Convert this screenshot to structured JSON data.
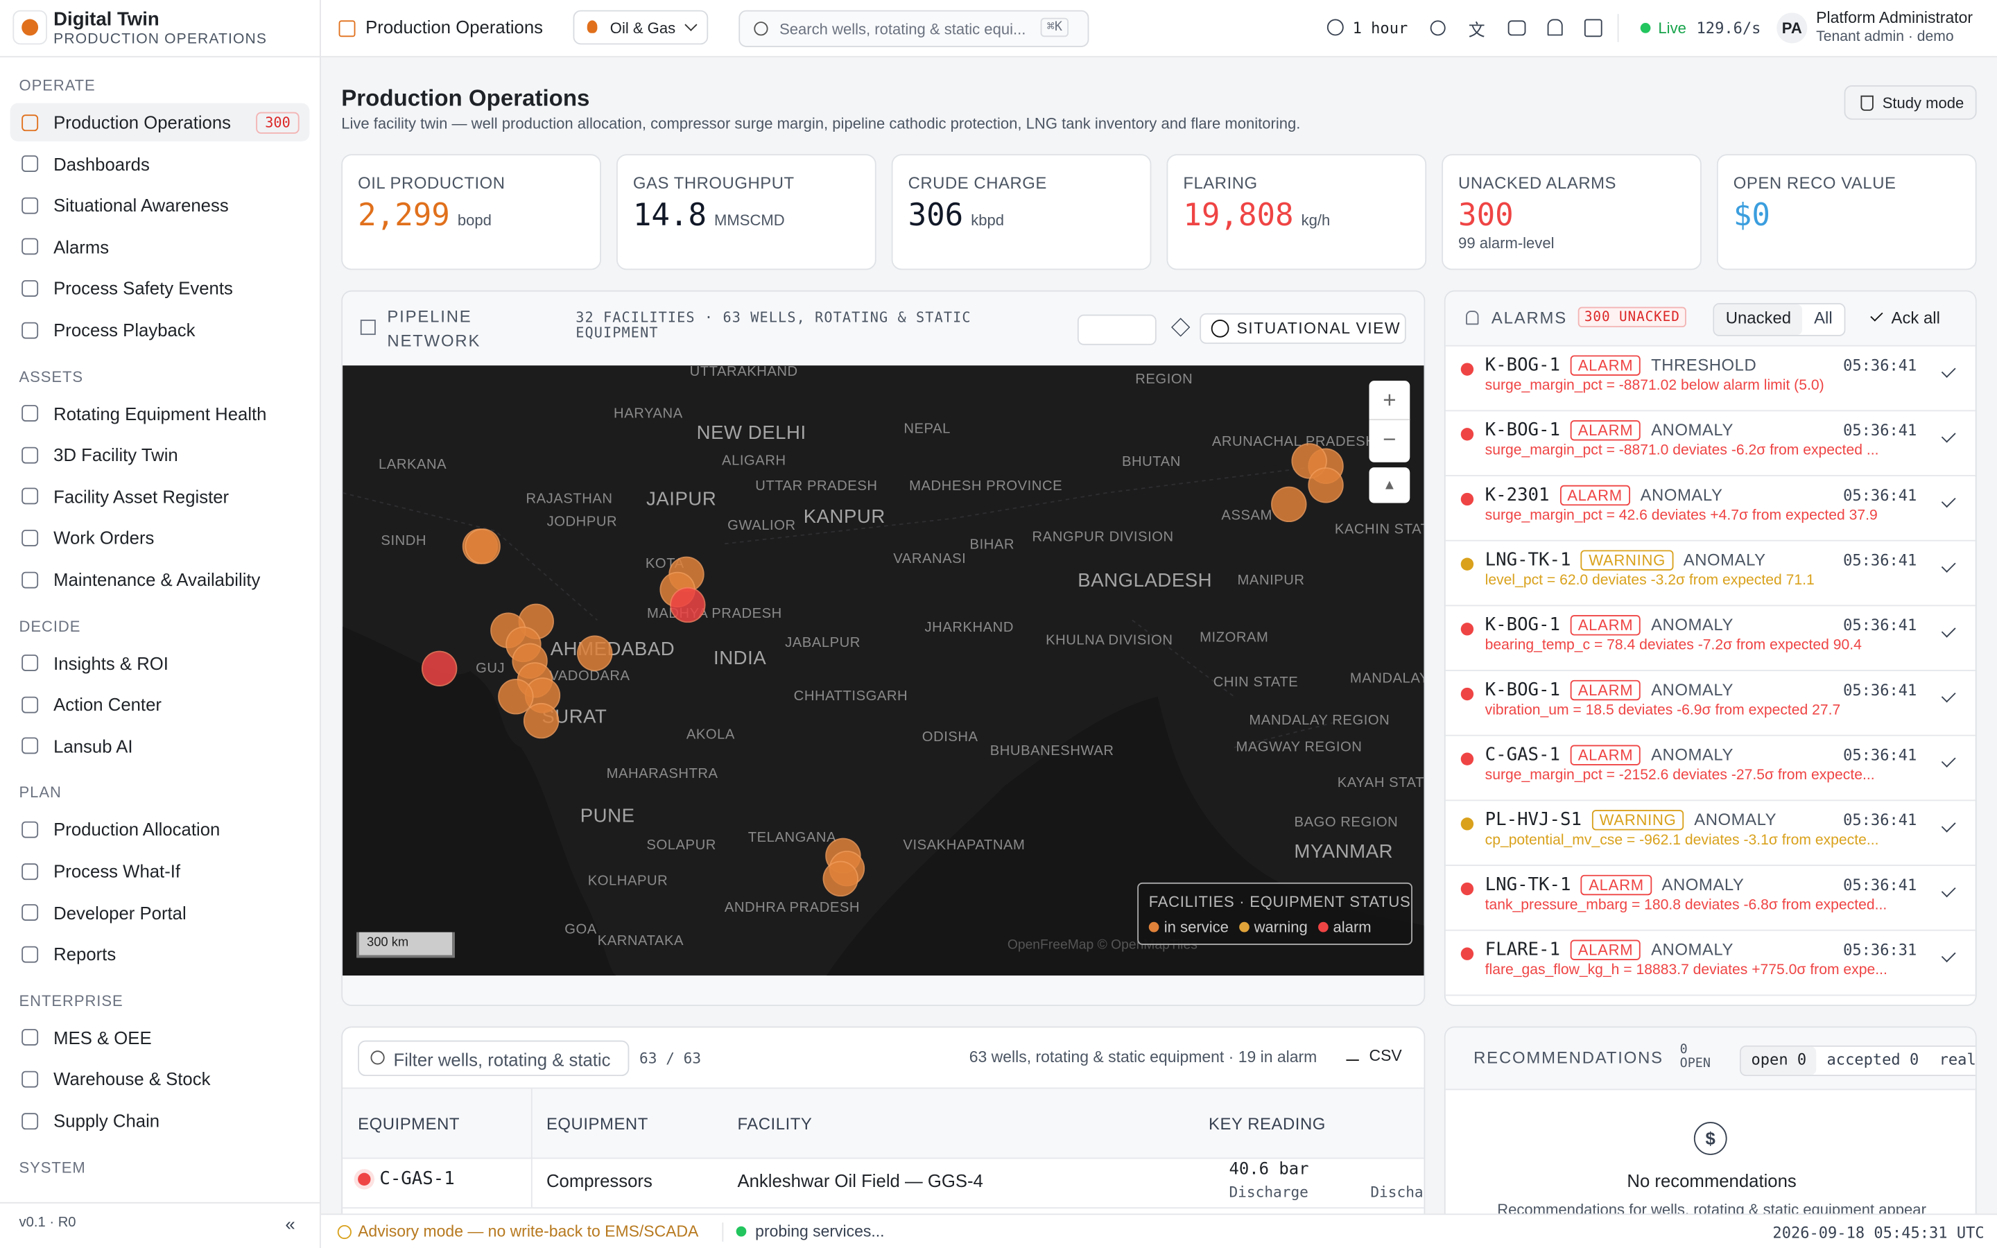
{
  "header": {
    "brand": "Digital Twin",
    "brand_sub": "PRODUCTION OPERATIONS",
    "crumb": "Production Operations",
    "domain": "Oil & Gas",
    "search": "Search wells, rotating & static equi...",
    "shortcut": "⌘K",
    "range": "1 hour",
    "live": "Live",
    "rate": "129.6/s",
    "avatar": "PA",
    "user": "Platform Administrator",
    "role": "Tenant admin · demo"
  },
  "sidebar": {
    "sections": [
      {
        "title": "OPERATE",
        "items": [
          {
            "label": "Production Operations",
            "badge": "300"
          },
          {
            "label": "Dashboards"
          },
          {
            "label": "Situational Awareness"
          },
          {
            "label": "Alarms"
          },
          {
            "label": "Process Safety Events"
          },
          {
            "label": "Process Playback"
          }
        ]
      },
      {
        "title": "ASSETS",
        "items": [
          {
            "label": "Rotating Equipment Health"
          },
          {
            "label": "3D Facility Twin"
          },
          {
            "label": "Facility Asset Register"
          },
          {
            "label": "Work Orders"
          },
          {
            "label": "Maintenance & Availability"
          }
        ]
      },
      {
        "title": "DECIDE",
        "items": [
          {
            "label": "Insights & ROI"
          },
          {
            "label": "Action Center"
          },
          {
            "label": "Lansub AI"
          }
        ]
      },
      {
        "title": "PLAN",
        "items": [
          {
            "label": "Production Allocation"
          },
          {
            "label": "Process What-If"
          },
          {
            "label": "Developer Portal"
          },
          {
            "label": "Reports"
          }
        ]
      },
      {
        "title": "ENTERPRISE",
        "items": [
          {
            "label": "MES & OEE"
          },
          {
            "label": "Warehouse & Stock"
          },
          {
            "label": "Supply Chain"
          }
        ]
      },
      {
        "title": "SYSTEM",
        "items": []
      }
    ],
    "version": "v0.1 · R0"
  },
  "page": {
    "title": "Production Operations",
    "subtitle": "Live facility twin — well production allocation, compressor surge margin, pipeline cathodic protection, LNG tank inventory and flare monitoring.",
    "study": "Study mode"
  },
  "kpis": [
    {
      "label": "OIL PRODUCTION",
      "value": "2,299",
      "unit": "bopd",
      "color": "#e0701c"
    },
    {
      "label": "GAS THROUGHPUT",
      "value": "14.8",
      "unit": "MMSCMD",
      "color": "#111827"
    },
    {
      "label": "CRUDE CHARGE",
      "value": "306",
      "unit": "kbpd",
      "color": "#111827"
    },
    {
      "label": "FLARING",
      "value": "19,808",
      "unit": "kg/h",
      "color": "#ef4444"
    },
    {
      "label": "UNACKED ALARMS",
      "value": "300",
      "note": "99 alarm-level",
      "color": "#ef4444"
    },
    {
      "label": "OPEN RECO VALUE",
      "value": "$0",
      "color": "#3b9ede"
    }
  ],
  "map": {
    "title": "PIPELINE NETWORK",
    "meta": "32 FACILITIES · 63 WELLS, ROTATING & STATIC EQUIPMENT",
    "view": "SITUATIONAL VIEW",
    "legend_title": "FACILITIES · EQUIPMENT STATUS",
    "legend": [
      {
        "label": "in service",
        "color": "#e0823a"
      },
      {
        "label": "warning",
        "color": "#e0a33a"
      },
      {
        "label": "alarm",
        "color": "#ef4444"
      }
    ],
    "scale": "300 km",
    "attribution": "OpenFreeMap © OpenMapTiles",
    "labels": [
      "UTTARAKHAND",
      "HARYANA",
      "NEW DELHI",
      "NEPAL",
      "ALIGARH",
      "JAIPUR",
      "UTTAR PRADESH",
      "RAJASTHAN",
      "JODHPUR",
      "GWALIOR",
      "KANPUR",
      "MADHESH PROVINCE",
      "BHUTAN",
      "BIHAR",
      "VARANASI",
      "RANGPUR DIVISION",
      "BANGLADESH",
      "MANIPUR",
      "ASSAM",
      "ARUNACHAL PRADESH",
      "SINDH",
      "LARKANA",
      "INDIA",
      "AHMEDABAD",
      "VADODARA",
      "SURAT",
      "JHARKHAND",
      "JABALPUR",
      "CHHATTISGARH",
      "KHULNA DIVISION",
      "MIZORAM",
      "CHIN STATE",
      "ODISHA",
      "AKOLA",
      "BHUBANESHWAR",
      "MAHARASHTRA",
      "PUNE",
      "TELANGANA",
      "SOLAPUR",
      "VISAKHAPATNAM",
      "KOLHAPUR",
      "ANDHRA PRADESH",
      "GOA",
      "KARNATAKA",
      "MYANMAR",
      "BAGO REGION",
      "MAGWAY REGION",
      "MANDALAY REGION",
      "KAYAH STATE",
      "MANDALAY",
      "KACHIN STATE",
      "REGION",
      "KOTA",
      "GUJ",
      "MADHYA PRADESH"
    ]
  },
  "alarms": {
    "title": "ALARMS",
    "badge": "300 UNACKED",
    "tabs": [
      "Unacked",
      "All"
    ],
    "ack": "Ack all",
    "items": [
      {
        "tag": "K-BOG-1",
        "level": "ALARM",
        "kind": "THRESHOLD",
        "time": "05:36:41",
        "detail": "surge_margin_pct = -8871.02 below alarm limit (5.0)",
        "color": "#ef4444"
      },
      {
        "tag": "K-BOG-1",
        "level": "ALARM",
        "kind": "ANOMALY",
        "time": "05:36:41",
        "detail": "surge_margin_pct = -8871.0 deviates -6.2σ from expected ...",
        "color": "#ef4444"
      },
      {
        "tag": "K-2301",
        "level": "ALARM",
        "kind": "ANOMALY",
        "time": "05:36:41",
        "detail": "surge_margin_pct = 42.6 deviates +4.7σ from expected 37.9",
        "color": "#ef4444"
      },
      {
        "tag": "LNG-TK-1",
        "level": "WARNING",
        "kind": "ANOMALY",
        "time": "05:36:41",
        "detail": "level_pct = 62.0 deviates -3.2σ from expected 71.1",
        "color": "#d9a11c"
      },
      {
        "tag": "K-BOG-1",
        "level": "ALARM",
        "kind": "ANOMALY",
        "time": "05:36:41",
        "detail": "bearing_temp_c = 78.4 deviates -7.2σ from expected 90.4",
        "color": "#ef4444"
      },
      {
        "tag": "K-BOG-1",
        "level": "ALARM",
        "kind": "ANOMALY",
        "time": "05:36:41",
        "detail": "vibration_um = 18.5 deviates -6.9σ from expected 27.7",
        "color": "#ef4444"
      },
      {
        "tag": "C-GAS-1",
        "level": "ALARM",
        "kind": "ANOMALY",
        "time": "05:36:41",
        "detail": "surge_margin_pct = -2152.6 deviates -27.5σ from expecte...",
        "color": "#ef4444"
      },
      {
        "tag": "PL-HVJ-S1",
        "level": "WARNING",
        "kind": "ANOMALY",
        "time": "05:36:41",
        "detail": "cp_potential_mv_cse = -962.1 deviates -3.1σ from expecte...",
        "color": "#d9a11c"
      },
      {
        "tag": "LNG-TK-1",
        "level": "ALARM",
        "kind": "ANOMALY",
        "time": "05:36:41",
        "detail": "tank_pressure_mbarg = 180.8 deviates -6.8σ from expected...",
        "color": "#ef4444"
      },
      {
        "tag": "FLARE-1",
        "level": "ALARM",
        "kind": "ANOMALY",
        "time": "05:36:31",
        "detail": "flare_gas_flow_kg_h = 18883.7 deviates +775.0σ from expe...",
        "color": "#ef4444"
      }
    ]
  },
  "table": {
    "filter": "Filter wells, rotating & static",
    "count": "63 / 63",
    "summary": "63 wells, rotating & static equipment · 19 in alarm",
    "csv": "CSV",
    "columns": [
      "EQUIPMENT",
      "EQUIPMENT",
      "FACILITY",
      "KEY READING"
    ],
    "rows": [
      [
        "C-GAS-1",
        "Compressors",
        "Ankleshwar Oil Field — GGS-4",
        "40.6 bar",
        "Discharge",
        "Discha"
      ]
    ]
  },
  "recommendations": {
    "title": "RECOMMENDATIONS",
    "open_badge": "0 OPEN",
    "tabs": [
      "open 0",
      "accepted 0",
      "reali"
    ],
    "empty": "No recommendations",
    "empty_text": "Recommendations for wells, rotating & static equipment appear"
  },
  "footer": {
    "advisory": "Advisory mode — no write-back to EMS/SCADA",
    "probe": "probing services...",
    "time": "2026-09-18 05:45:31 UTC"
  }
}
